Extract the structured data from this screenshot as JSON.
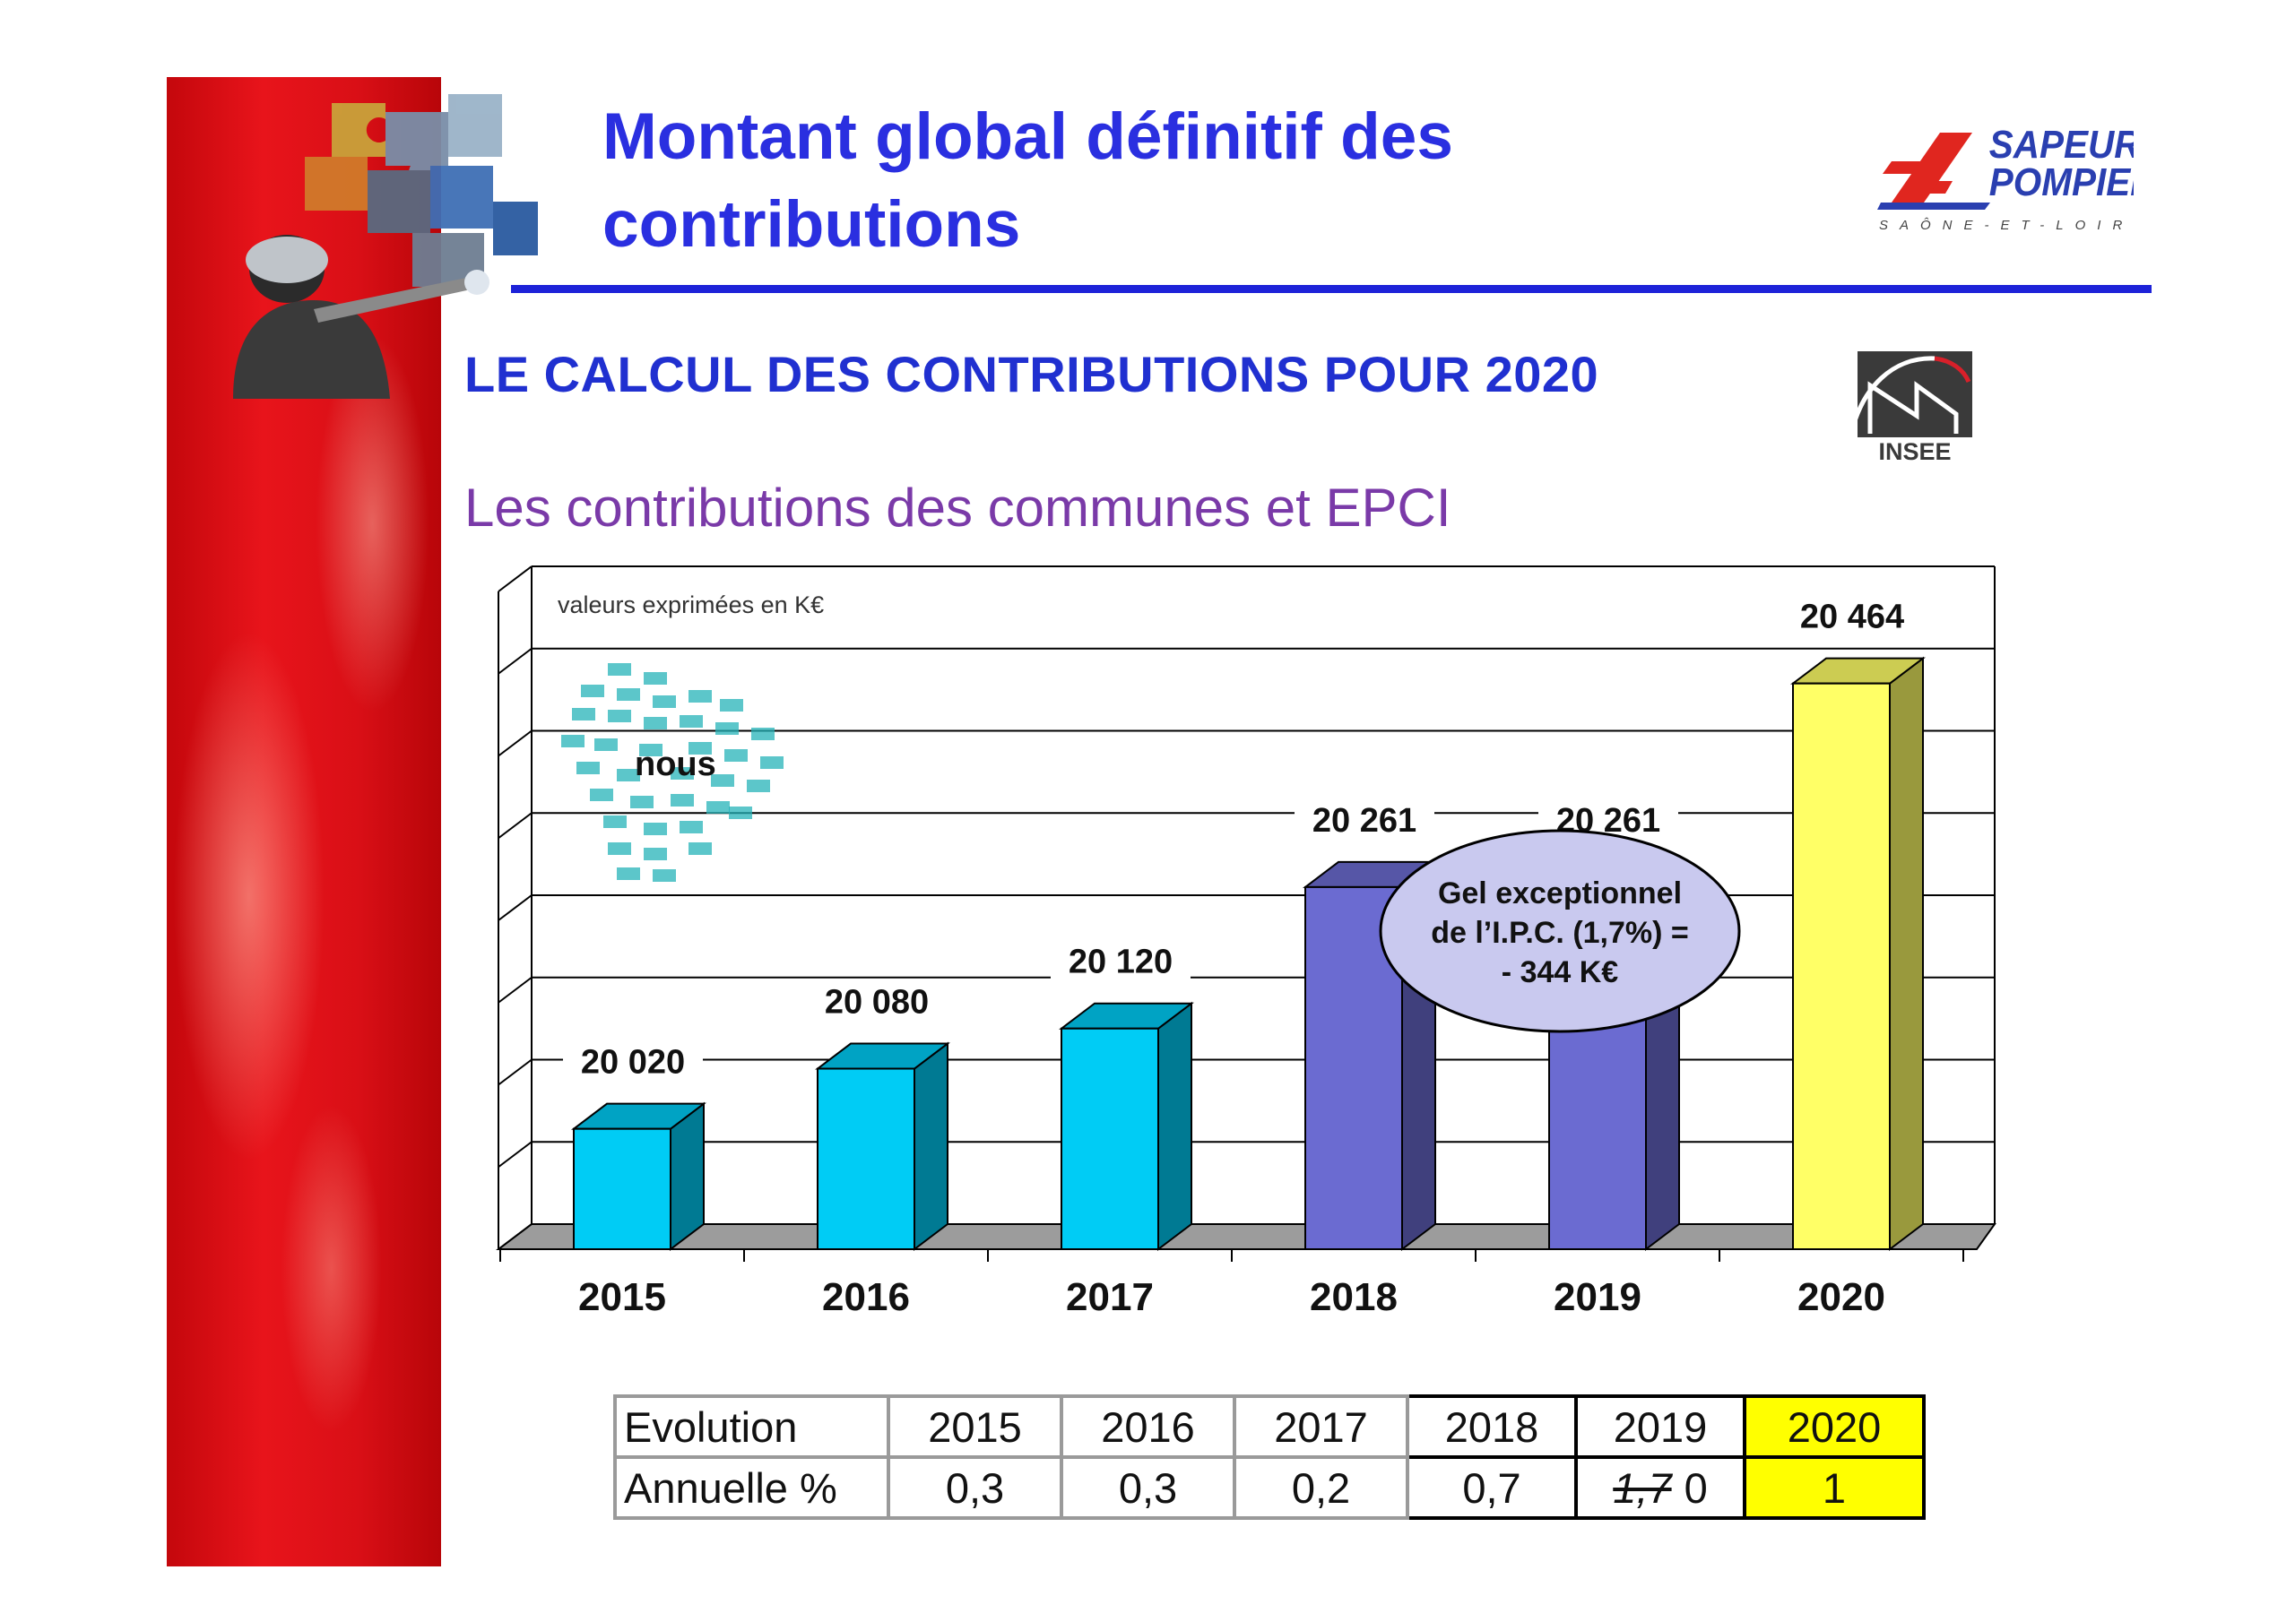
{
  "slide": {
    "title_line1": "Montant global définitif des",
    "title_line2": "contributions",
    "subtitle": "LE CALCUL DES CONTRIBUTIONS POUR 2020",
    "subsubtitle": "Les contributions des communes et EPCI",
    "logo_text_line1": "SAPEURS",
    "logo_text_line2": "POMPIERS",
    "logo_text_line3": "SAÔNE-ET-LOIRE",
    "insee_label": "INSEE",
    "colors": {
      "title": "#2a2fe0",
      "rule": "#1d22d8",
      "subtitle": "#2030d0",
      "subsubtitle": "#7a3aa8",
      "band": "#e8141b"
    }
  },
  "chart_data": {
    "type": "bar",
    "note": "valeurs exprimées en K€",
    "categories": [
      "2015",
      "2016",
      "2017",
      "2018",
      "2019",
      "2020"
    ],
    "values": [
      20020,
      20080,
      20120,
      20261,
      20261,
      20464
    ],
    "value_labels": [
      "20 020",
      "20 080",
      "20 120",
      "20 261",
      "20 261",
      "20 464"
    ],
    "bar_colors": [
      "#00ccf5",
      "#00ccf5",
      "#00ccf5",
      "#6b6bd1",
      "#6b6bd1",
      "#ffff66"
    ],
    "grid": true,
    "cloud_word": "nous",
    "callout_lines": [
      "Gel exceptionnel",
      "de l’I.P.C. (1,7%) =",
      "- 344 K€"
    ]
  },
  "evolution_table": {
    "row1": [
      "Evolution",
      "2015",
      "2016",
      "2017",
      "2018",
      "2019",
      "2020"
    ],
    "row2_label": "Annuelle %",
    "row2_values": [
      "0,3",
      "0,3",
      "0,2",
      "0,7"
    ],
    "row2_2019_struck": "1,7",
    "row2_2019_value": "0",
    "row2_2020": "1",
    "highlight_color": "#ffff00"
  }
}
